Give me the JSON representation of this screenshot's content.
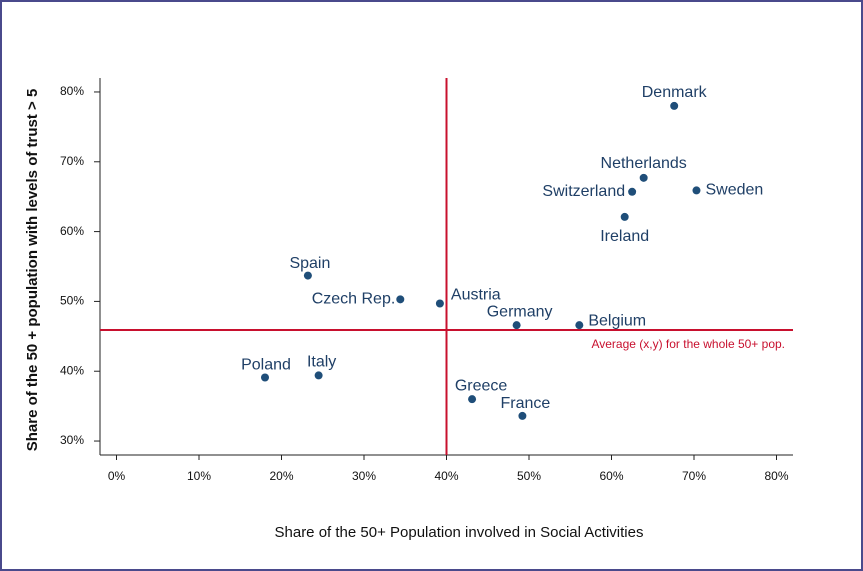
{
  "chart_data": {
    "type": "scatter",
    "x_label": "Share of the  50+ Population involved in Social Activities",
    "y_label": "Share of the 50 + population with levels of trust > 5",
    "labels": [
      "Denmark",
      "Netherlands",
      "Switzerland",
      "Sweden",
      "Ireland",
      "Spain",
      "Czech Rep.",
      "Austria",
      "Germany",
      "Belgium",
      "Poland",
      "Italy",
      "Greece",
      "France"
    ],
    "x": [
      67.6,
      63.9,
      62.5,
      70.3,
      61.6,
      23.2,
      34.4,
      39.2,
      48.5,
      56.1,
      18.0,
      24.5,
      43.1,
      49.2
    ],
    "values": [
      78.0,
      67.7,
      65.7,
      65.9,
      62.1,
      53.7,
      50.3,
      49.7,
      46.6,
      46.6,
      39.1,
      39.4,
      36.0,
      33.6
    ],
    "color": "#1f4e79",
    "reference": {
      "x": 40,
      "y": 45.9,
      "label": "Average (x,y) for the whole 50+ pop.",
      "color": "#c8102e"
    },
    "xlim": [
      -2,
      82
    ],
    "ylim": [
      28,
      82
    ],
    "xticks": [
      {
        "value": 0,
        "label": "0%"
      },
      {
        "value": 10,
        "label": "10%"
      },
      {
        "value": 20,
        "label": "20%"
      },
      {
        "value": 30,
        "label": "30%"
      },
      {
        "value": 40,
        "label": "40%"
      },
      {
        "value": 50,
        "label": "50%"
      },
      {
        "value": 60,
        "label": "60%"
      },
      {
        "value": 70,
        "label": "70%"
      },
      {
        "value": 80,
        "label": "80%"
      }
    ],
    "yticks": [
      {
        "value": 30,
        "label": "30%"
      },
      {
        "value": 40,
        "label": "40%"
      },
      {
        "value": 50,
        "label": "50%"
      },
      {
        "value": 60,
        "label": "60%"
      },
      {
        "value": 70,
        "label": "70%"
      },
      {
        "value": 80,
        "label": "80%"
      }
    ]
  }
}
